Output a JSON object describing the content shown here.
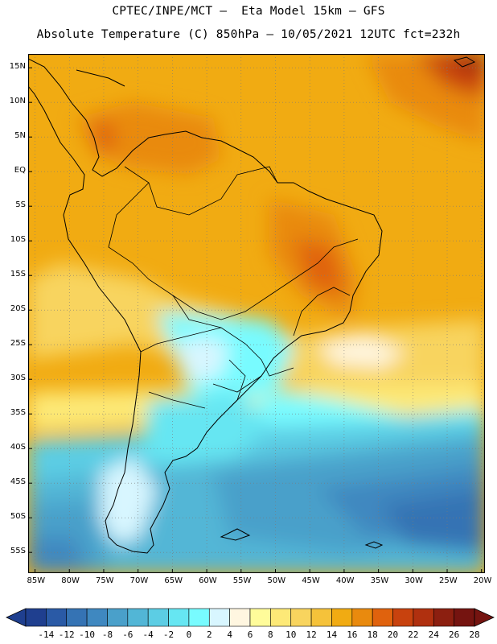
{
  "header": {
    "line1": "CPTEC/INPE/MCT –  Eta Model 15km – GFS",
    "line2": "Absolute Temperature (C) 850hPa – 10/05/2021 12UTC fct=232h"
  },
  "map": {
    "lon_range": [
      -86,
      -19.5
    ],
    "lat_range": [
      -58,
      17
    ],
    "lat_ticks": [
      {
        "value": 15,
        "label": "15N"
      },
      {
        "value": 10,
        "label": "10N"
      },
      {
        "value": 5,
        "label": "5N"
      },
      {
        "value": 0,
        "label": "EQ"
      },
      {
        "value": -5,
        "label": "5S"
      },
      {
        "value": -10,
        "label": "10S"
      },
      {
        "value": -15,
        "label": "15S"
      },
      {
        "value": -20,
        "label": "20S"
      },
      {
        "value": -25,
        "label": "25S"
      },
      {
        "value": -30,
        "label": "30S"
      },
      {
        "value": -35,
        "label": "35S"
      },
      {
        "value": -40,
        "label": "40S"
      },
      {
        "value": -45,
        "label": "45S"
      },
      {
        "value": -50,
        "label": "50S"
      },
      {
        "value": -55,
        "label": "55S"
      }
    ],
    "lon_ticks": [
      {
        "value": -85,
        "label": "85W"
      },
      {
        "value": -80,
        "label": "80W"
      },
      {
        "value": -75,
        "label": "75W"
      },
      {
        "value": -70,
        "label": "70W"
      },
      {
        "value": -65,
        "label": "65W"
      },
      {
        "value": -60,
        "label": "60W"
      },
      {
        "value": -55,
        "label": "55W"
      },
      {
        "value": -50,
        "label": "50W"
      },
      {
        "value": -45,
        "label": "45W"
      },
      {
        "value": -40,
        "label": "40W"
      },
      {
        "value": -35,
        "label": "35W"
      },
      {
        "value": -30,
        "label": "30W"
      },
      {
        "value": -25,
        "label": "25W"
      },
      {
        "value": -20,
        "label": "20W"
      }
    ]
  },
  "colorbar": {
    "labels": [
      "-14",
      "-12",
      "-10",
      "-8",
      "-6",
      "-4",
      "-2",
      "0",
      "2",
      "4",
      "6",
      "8",
      "10",
      "12",
      "14",
      "16",
      "18",
      "20",
      "22",
      "24",
      "26",
      "28"
    ],
    "colors": [
      "#1f3f8f",
      "#2a5aa6",
      "#3573b4",
      "#3f88c0",
      "#4aa0ca",
      "#52b6d6",
      "#5ccde4",
      "#66e6f2",
      "#78fbff",
      "#d8f6ff",
      "#fff6e0",
      "#fffc9a",
      "#fde977",
      "#f8d45e",
      "#f5c23a",
      "#f1ab12",
      "#e98a0e",
      "#e0620d",
      "#c8420e",
      "#b0300f",
      "#8c1f10",
      "#751410"
    ]
  }
}
